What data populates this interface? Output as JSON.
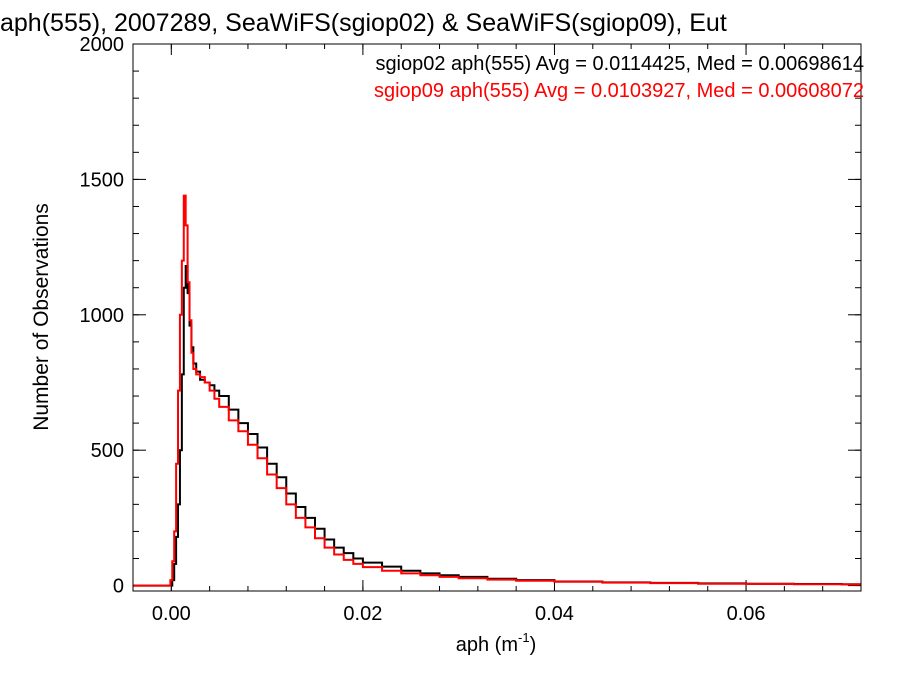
{
  "chart_data": {
    "type": "line",
    "title": "aph(555), 2007289, SeaWiFS(sgiop02) & SeaWiFS(sgiop09), Eut",
    "xlabel_base": "aph (m",
    "xlabel_sup": "-1",
    "xlabel_close": ")",
    "ylabel": "Number of Observations",
    "xlim": [
      -0.004,
      0.072
    ],
    "ylim": [
      -20,
      2000
    ],
    "xticks": [
      0.0,
      0.02,
      0.04,
      0.06
    ],
    "xtick_labels": [
      "0.00",
      "0.02",
      "0.04",
      "0.06"
    ],
    "xminor_step": 0.004,
    "yticks": [
      0,
      500,
      1000,
      1500,
      2000
    ],
    "ytick_labels": [
      "0",
      "500",
      "1000",
      "1500",
      "2000"
    ],
    "yminor_step": 100,
    "grid": false,
    "legend": "top-right",
    "annotations": [
      {
        "text": "sgiop02 aph(555) Avg = 0.0114425, Med = 0.00698614",
        "color": "#000000"
      },
      {
        "text": "sgiop09 aph(555) Avg = 0.0103927, Med = 0.00608072",
        "color": "#ff0000"
      }
    ],
    "series": [
      {
        "name": "sgiop02",
        "color": "#000000",
        "x": [
          -0.004,
          0.0,
          0.0001,
          0.0003,
          0.0005,
          0.0007,
          0.0009,
          0.0011,
          0.0013,
          0.0015,
          0.0017,
          0.0019,
          0.0021,
          0.0023,
          0.0026,
          0.003,
          0.0035,
          0.004,
          0.0045,
          0.005,
          0.006,
          0.007,
          0.008,
          0.009,
          0.01,
          0.011,
          0.012,
          0.013,
          0.014,
          0.015,
          0.016,
          0.017,
          0.018,
          0.019,
          0.02,
          0.022,
          0.024,
          0.026,
          0.028,
          0.03,
          0.033,
          0.036,
          0.04,
          0.045,
          0.05,
          0.055,
          0.06,
          0.065,
          0.07,
          0.072
        ],
        "y": [
          0,
          0,
          20,
          80,
          180,
          300,
          500,
          780,
          1100,
          1180,
          1080,
          960,
          880,
          820,
          790,
          760,
          750,
          740,
          720,
          700,
          650,
          600,
          560,
          510,
          450,
          400,
          340,
          290,
          250,
          210,
          170,
          140,
          120,
          100,
          85,
          70,
          55,
          45,
          38,
          32,
          25,
          20,
          15,
          12,
          10,
          8,
          7,
          6,
          5,
          5
        ]
      },
      {
        "name": "sgiop09",
        "color": "#ff0000",
        "x": [
          -0.004,
          -0.0002,
          -0.0001,
          0.0001,
          0.0003,
          0.0005,
          0.0007,
          0.0009,
          0.0011,
          0.0013,
          0.0015,
          0.0017,
          0.0019,
          0.0021,
          0.0023,
          0.0026,
          0.003,
          0.0035,
          0.004,
          0.0045,
          0.005,
          0.006,
          0.007,
          0.008,
          0.009,
          0.01,
          0.011,
          0.012,
          0.013,
          0.014,
          0.015,
          0.016,
          0.017,
          0.018,
          0.019,
          0.02,
          0.022,
          0.024,
          0.026,
          0.028,
          0.03,
          0.033,
          0.036,
          0.04,
          0.045,
          0.05,
          0.055,
          0.06,
          0.065,
          0.07,
          0.072
        ],
        "y": [
          0,
          0,
          20,
          90,
          200,
          450,
          720,
          1000,
          1200,
          1440,
          1330,
          1120,
          980,
          860,
          800,
          780,
          770,
          750,
          720,
          690,
          660,
          610,
          570,
          520,
          470,
          410,
          360,
          300,
          250,
          215,
          175,
          140,
          115,
          95,
          80,
          68,
          55,
          45,
          38,
          32,
          27,
          22,
          18,
          14,
          11,
          9,
          7,
          6,
          5,
          4,
          4
        ]
      }
    ]
  }
}
